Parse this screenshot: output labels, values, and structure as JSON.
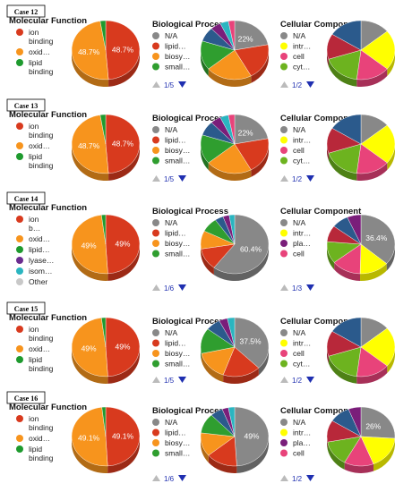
{
  "colors": {
    "ion_binding": "#d83a1e",
    "oxidoreductase": "#f7941d",
    "lipid_binding": "#1e9a2e",
    "lyase": "#6a2c8f",
    "isomerase": "#2ab5c0",
    "other": "#c8c8c8",
    "na": "#888888",
    "green": "#2f9e2f",
    "yellow": "#ffff00",
    "pink": "#e8437a",
    "purple": "#7a1e7a",
    "blue": "#2b5a8c",
    "darkred": "#b8283a",
    "lime": "#6db31f",
    "nav_arrow": "#1f2fb0",
    "nav_up": "#bbbbbb"
  },
  "chart_data": [
    {
      "case": "Case 12",
      "panels": [
        {
          "title": "Molecular Function",
          "type": "pie",
          "legend": [
            {
              "label": "ion binding",
              "color": "ion_binding"
            },
            {
              "label": "oxid…",
              "color": "oxidoreductase"
            },
            {
              "label": "lipid binding",
              "color": "lipid_binding"
            }
          ],
          "slices": [
            {
              "value": 48.7,
              "color": "ion_binding"
            },
            {
              "value": 48.7,
              "color": "oxidoreductase"
            },
            {
              "value": 2.6,
              "color": "lipid_binding"
            }
          ],
          "labels": [
            "48.7%",
            "48.7%"
          ],
          "nav": ""
        },
        {
          "title": "Biological Process",
          "type": "pie",
          "legend": [
            {
              "label": "N/A",
              "color": "na"
            },
            {
              "label": "lipid…",
              "color": "ion_binding"
            },
            {
              "label": "biosy…",
              "color": "oxidoreductase"
            },
            {
              "label": "small…",
              "color": "green"
            }
          ],
          "slices": [
            {
              "value": 22,
              "color": "na"
            },
            {
              "value": 20,
              "color": "ion_binding"
            },
            {
              "value": 22,
              "color": "oxidoreductase"
            },
            {
              "value": 16,
              "color": "green"
            },
            {
              "value": 8,
              "color": "blue"
            },
            {
              "value": 5,
              "color": "purple"
            },
            {
              "value": 4,
              "color": "isomerase"
            },
            {
              "value": 3,
              "color": "pink"
            }
          ],
          "labels": [
            "22%"
          ],
          "nav": "1/5"
        },
        {
          "title": "Cellular Component",
          "type": "pie",
          "legend": [
            {
              "label": "N/A",
              "color": "na"
            },
            {
              "label": "intr…",
              "color": "yellow"
            },
            {
              "label": "cell",
              "color": "pink"
            },
            {
              "label": "cyt…",
              "color": "lime"
            }
          ],
          "slices": [
            {
              "value": 14,
              "color": "na"
            },
            {
              "value": 22,
              "color": "yellow"
            },
            {
              "value": 16,
              "color": "pink"
            },
            {
              "value": 18,
              "color": "lime"
            },
            {
              "value": 14,
              "color": "darkred"
            },
            {
              "value": 16,
              "color": "blue"
            }
          ],
          "labels": [],
          "nav": "1/2"
        }
      ]
    },
    {
      "case": "Case 13",
      "panels": [
        {
          "title": "Molecular Function",
          "type": "pie",
          "legend": [
            {
              "label": "ion binding",
              "color": "ion_binding"
            },
            {
              "label": "oxid…",
              "color": "oxidoreductase"
            },
            {
              "label": "lipid binding",
              "color": "lipid_binding"
            }
          ],
          "slices": [
            {
              "value": 48.7,
              "color": "ion_binding"
            },
            {
              "value": 48.7,
              "color": "oxidoreductase"
            },
            {
              "value": 2.6,
              "color": "lipid_binding"
            }
          ],
          "labels": [
            "48.7%",
            "48.7%"
          ],
          "nav": ""
        },
        {
          "title": "Biological Process",
          "type": "pie",
          "legend": [
            {
              "label": "N/A",
              "color": "na"
            },
            {
              "label": "lipid…",
              "color": "ion_binding"
            },
            {
              "label": "biosy…",
              "color": "oxidoreductase"
            },
            {
              "label": "small…",
              "color": "green"
            }
          ],
          "slices": [
            {
              "value": 22,
              "color": "na"
            },
            {
              "value": 20,
              "color": "ion_binding"
            },
            {
              "value": 22,
              "color": "oxidoreductase"
            },
            {
              "value": 16,
              "color": "green"
            },
            {
              "value": 8,
              "color": "blue"
            },
            {
              "value": 5,
              "color": "purple"
            },
            {
              "value": 4,
              "color": "isomerase"
            },
            {
              "value": 3,
              "color": "pink"
            }
          ],
          "labels": [
            "22%"
          ],
          "nav": "1/5"
        },
        {
          "title": "Cellular Component",
          "type": "pie",
          "legend": [
            {
              "label": "N/A",
              "color": "na"
            },
            {
              "label": "intr…",
              "color": "yellow"
            },
            {
              "label": "cell",
              "color": "pink"
            },
            {
              "label": "cyt…",
              "color": "lime"
            }
          ],
          "slices": [
            {
              "value": 14,
              "color": "na"
            },
            {
              "value": 22,
              "color": "yellow"
            },
            {
              "value": 16,
              "color": "pink"
            },
            {
              "value": 18,
              "color": "lime"
            },
            {
              "value": 14,
              "color": "darkred"
            },
            {
              "value": 16,
              "color": "blue"
            }
          ],
          "labels": [],
          "nav": "1/2"
        }
      ]
    },
    {
      "case": "Case 14",
      "panels": [
        {
          "title": "Molecular Function",
          "type": "pie",
          "legend": [
            {
              "label": "ion b…",
              "color": "ion_binding"
            },
            {
              "label": "oxid…",
              "color": "oxidoreductase"
            },
            {
              "label": "lipid…",
              "color": "lipid_binding"
            },
            {
              "label": "lyase…",
              "color": "lyase"
            },
            {
              "label": "isom…",
              "color": "isomerase"
            },
            {
              "label": "Other",
              "color": "other"
            }
          ],
          "slices": [
            {
              "value": 49,
              "color": "ion_binding"
            },
            {
              "value": 49,
              "color": "oxidoreductase"
            },
            {
              "value": 2,
              "color": "lipid_binding"
            }
          ],
          "labels": [
            "49%",
            "49%"
          ],
          "nav": ""
        },
        {
          "title": "Biological Process",
          "type": "pie",
          "legend": [
            {
              "label": "N/A",
              "color": "na"
            },
            {
              "label": "lipid…",
              "color": "ion_binding"
            },
            {
              "label": "biosy…",
              "color": "oxidoreductase"
            },
            {
              "label": "small…",
              "color": "green"
            }
          ],
          "slices": [
            {
              "value": 60.4,
              "color": "na"
            },
            {
              "value": 12,
              "color": "ion_binding"
            },
            {
              "value": 10,
              "color": "oxidoreductase"
            },
            {
              "value": 8,
              "color": "green"
            },
            {
              "value": 4,
              "color": "blue"
            },
            {
              "value": 3,
              "color": "purple"
            },
            {
              "value": 2.6,
              "color": "isomerase"
            }
          ],
          "labels": [
            "60.4%"
          ],
          "nav": "1/6"
        },
        {
          "title": "Cellular Component",
          "type": "pie",
          "legend": [
            {
              "label": "N/A",
              "color": "na"
            },
            {
              "label": "intr…",
              "color": "yellow"
            },
            {
              "label": "pla…",
              "color": "purple"
            },
            {
              "label": "cell",
              "color": "pink"
            }
          ],
          "slices": [
            {
              "value": 36.4,
              "color": "na"
            },
            {
              "value": 14,
              "color": "yellow"
            },
            {
              "value": 14,
              "color": "pink"
            },
            {
              "value": 12,
              "color": "lime"
            },
            {
              "value": 9,
              "color": "darkred"
            },
            {
              "value": 8,
              "color": "blue"
            },
            {
              "value": 6.6,
              "color": "purple"
            }
          ],
          "labels": [
            "36.4%"
          ],
          "nav": "1/3"
        }
      ]
    },
    {
      "case": "Case 15",
      "panels": [
        {
          "title": "Molecular Function",
          "type": "pie",
          "legend": [
            {
              "label": "ion binding",
              "color": "ion_binding"
            },
            {
              "label": "oxid…",
              "color": "oxidoreductase"
            },
            {
              "label": "lipid binding",
              "color": "lipid_binding"
            }
          ],
          "slices": [
            {
              "value": 49,
              "color": "ion_binding"
            },
            {
              "value": 49,
              "color": "oxidoreductase"
            },
            {
              "value": 2,
              "color": "lipid_binding"
            }
          ],
          "labels": [
            "49%",
            "49%"
          ],
          "nav": ""
        },
        {
          "title": "Biological Process",
          "type": "pie",
          "legend": [
            {
              "label": "N/A",
              "color": "na"
            },
            {
              "label": "lipid…",
              "color": "ion_binding"
            },
            {
              "label": "biosy…",
              "color": "oxidoreductase"
            },
            {
              "label": "small…",
              "color": "green"
            }
          ],
          "slices": [
            {
              "value": 37.5,
              "color": "na"
            },
            {
              "value": 18,
              "color": "ion_binding"
            },
            {
              "value": 16,
              "color": "oxidoreductase"
            },
            {
              "value": 14,
              "color": "green"
            },
            {
              "value": 7,
              "color": "blue"
            },
            {
              "value": 4,
              "color": "purple"
            },
            {
              "value": 3.5,
              "color": "isomerase"
            }
          ],
          "labels": [
            "37.5%"
          ],
          "nav": "1/5"
        },
        {
          "title": "Cellular Component",
          "type": "pie",
          "legend": [
            {
              "label": "N/A",
              "color": "na"
            },
            {
              "label": "intr…",
              "color": "yellow"
            },
            {
              "label": "cell",
              "color": "pink"
            },
            {
              "label": "cyt…",
              "color": "lime"
            }
          ],
          "slices": [
            {
              "value": 14,
              "color": "na"
            },
            {
              "value": 22,
              "color": "yellow"
            },
            {
              "value": 16,
              "color": "pink"
            },
            {
              "value": 18,
              "color": "lime"
            },
            {
              "value": 14,
              "color": "darkred"
            },
            {
              "value": 16,
              "color": "blue"
            }
          ],
          "labels": [],
          "nav": "1/2"
        }
      ]
    },
    {
      "case": "Case 16",
      "panels": [
        {
          "title": "Molecular Function",
          "type": "pie",
          "legend": [
            {
              "label": "ion binding",
              "color": "ion_binding"
            },
            {
              "label": "oxid…",
              "color": "oxidoreductase"
            },
            {
              "label": "lipid binding",
              "color": "lipid_binding"
            }
          ],
          "slices": [
            {
              "value": 49.1,
              "color": "ion_binding"
            },
            {
              "value": 49.1,
              "color": "oxidoreductase"
            },
            {
              "value": 1.8,
              "color": "lipid_binding"
            }
          ],
          "labels": [
            "49.1%",
            "49.1%"
          ],
          "nav": ""
        },
        {
          "title": "Biological Process",
          "type": "pie",
          "legend": [
            {
              "label": "N/A",
              "color": "na"
            },
            {
              "label": "lipid…",
              "color": "ion_binding"
            },
            {
              "label": "biosy…",
              "color": "oxidoreductase"
            },
            {
              "label": "small…",
              "color": "green"
            }
          ],
          "slices": [
            {
              "value": 49,
              "color": "na"
            },
            {
              "value": 15,
              "color": "ion_binding"
            },
            {
              "value": 13,
              "color": "oxidoreductase"
            },
            {
              "value": 11,
              "color": "green"
            },
            {
              "value": 6,
              "color": "blue"
            },
            {
              "value": 3,
              "color": "purple"
            },
            {
              "value": 3,
              "color": "isomerase"
            }
          ],
          "labels": [
            "49%"
          ],
          "nav": "1/6"
        },
        {
          "title": "Cellular Component",
          "type": "pie",
          "legend": [
            {
              "label": "N/A",
              "color": "na"
            },
            {
              "label": "intr…",
              "color": "yellow"
            },
            {
              "label": "pla…",
              "color": "purple"
            },
            {
              "label": "cell",
              "color": "pink"
            }
          ],
          "slices": [
            {
              "value": 26,
              "color": "na"
            },
            {
              "value": 18,
              "color": "yellow"
            },
            {
              "value": 14,
              "color": "pink"
            },
            {
              "value": 14,
              "color": "lime"
            },
            {
              "value": 12,
              "color": "darkred"
            },
            {
              "value": 10,
              "color": "blue"
            },
            {
              "value": 6,
              "color": "purple"
            }
          ],
          "labels": [
            "26%"
          ],
          "nav": "1/2"
        }
      ]
    }
  ]
}
